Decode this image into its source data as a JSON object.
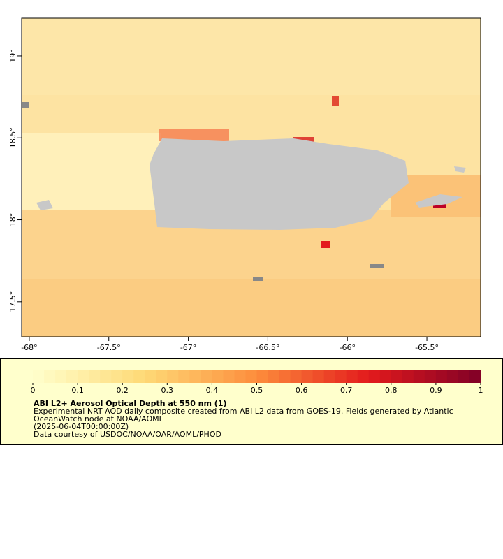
{
  "map": {
    "lon_range": [
      -68.048,
      -65.162
    ],
    "lat_range": [
      17.286,
      19.23
    ],
    "lon_ticks": [
      {
        "value": -68,
        "label": "-68°"
      },
      {
        "value": -67.5,
        "label": "-67.5°"
      },
      {
        "value": -67,
        "label": "-67°"
      },
      {
        "value": -66.5,
        "label": "-66.5°"
      },
      {
        "value": -66,
        "label": "-66°"
      },
      {
        "value": -65.5,
        "label": "-65.5°"
      }
    ],
    "lat_ticks": [
      {
        "value": 19,
        "label": "19°"
      },
      {
        "value": 18.5,
        "label": "18.5°"
      },
      {
        "value": 18,
        "label": "18°"
      },
      {
        "value": 17.5,
        "label": "17.5°"
      }
    ]
  },
  "colorbar": {
    "range": [
      0,
      1
    ],
    "ticks": [
      0,
      0.1,
      0.2,
      0.3,
      0.4,
      0.5,
      0.6,
      0.7,
      0.8,
      0.9,
      1
    ],
    "colors": [
      "#ffffcc",
      "#fed976",
      "#fd8d3c",
      "#e31a1c",
      "#800026"
    ]
  },
  "legend": {
    "title": "ABI L2+ Aerosol Optical Depth at 550 nm (1)",
    "lines": [
      "Experimental NRT AOD daily composite created from ABI L2 data from GOES-19. Fields generated by Atlantic",
      "OceanWatch node at NOAA/AOML",
      "(2025-06-04T00:00:00Z)",
      "Data courtesy of USDOC/NOAA/OAR/AOML/PHOD"
    ]
  }
}
